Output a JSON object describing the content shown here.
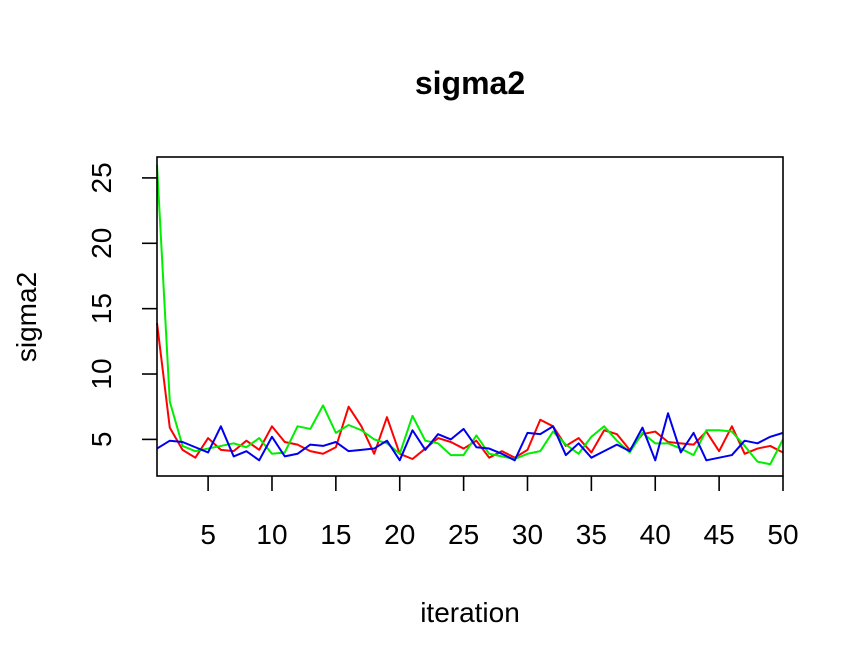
{
  "chart_data": {
    "type": "line",
    "title": "sigma2",
    "xlabel": "iteration",
    "ylabel": "sigma2",
    "xlim": [
      1,
      50
    ],
    "ylim": [
      2.2,
      26.6
    ],
    "xticks": [
      5,
      10,
      15,
      20,
      25,
      30,
      35,
      40,
      45,
      50
    ],
    "yticks": [
      5,
      10,
      15,
      20,
      25
    ],
    "x": [
      1,
      2,
      3,
      4,
      5,
      6,
      7,
      8,
      9,
      10,
      11,
      12,
      13,
      14,
      15,
      16,
      17,
      18,
      19,
      20,
      21,
      22,
      23,
      24,
      25,
      26,
      27,
      28,
      29,
      30,
      31,
      32,
      33,
      34,
      35,
      36,
      37,
      38,
      39,
      40,
      41,
      42,
      43,
      44,
      45,
      46,
      47,
      48,
      49,
      50
    ],
    "series": [
      {
        "color": "#ff0000",
        "values": [
          13.9,
          5.9,
          4.2,
          3.6,
          5.1,
          4.2,
          4.1,
          4.9,
          4.2,
          6.0,
          4.8,
          4.6,
          4.1,
          3.9,
          4.4,
          7.5,
          6.0,
          3.9,
          6.7,
          3.9,
          3.5,
          4.3,
          5.1,
          4.8,
          4.3,
          4.9,
          3.6,
          4.1,
          3.6,
          4.2,
          6.5,
          6.0,
          4.5,
          5.1,
          4.0,
          5.7,
          5.4,
          4.2,
          5.4,
          5.6,
          4.8,
          4.7,
          4.6,
          5.6,
          4.1,
          6.0,
          3.9,
          4.3,
          4.5,
          4.0
        ]
      },
      {
        "color": "#00ee00",
        "values": [
          26.0,
          7.9,
          4.5,
          4.1,
          4.3,
          4.5,
          4.7,
          4.4,
          5.1,
          3.9,
          4.0,
          6.0,
          5.8,
          7.6,
          5.5,
          6.1,
          5.7,
          5.0,
          4.7,
          3.9,
          6.8,
          4.9,
          4.7,
          3.8,
          3.8,
          5.3,
          3.9,
          3.7,
          3.5,
          3.9,
          4.1,
          5.6,
          4.6,
          3.9,
          5.2,
          6.0,
          4.9,
          4.0,
          5.5,
          4.7,
          4.7,
          4.3,
          3.8,
          5.7,
          5.7,
          5.6,
          4.5,
          3.3,
          3.1,
          5.0
        ]
      },
      {
        "color": "#0000ee",
        "values": [
          4.3,
          4.9,
          4.8,
          4.4,
          4.0,
          6.0,
          3.7,
          4.1,
          3.4,
          5.2,
          3.7,
          3.9,
          4.6,
          4.5,
          4.8,
          4.1,
          4.2,
          4.3,
          4.9,
          3.4,
          5.7,
          4.2,
          5.4,
          5.0,
          5.8,
          4.4,
          4.3,
          3.9,
          3.4,
          5.5,
          5.4,
          6.0,
          3.8,
          4.7,
          3.6,
          4.1,
          4.6,
          4.1,
          5.9,
          3.4,
          7.0,
          4.0,
          5.5,
          3.4,
          3.6,
          3.8,
          4.9,
          4.7,
          5.2,
          5.5
        ]
      }
    ]
  }
}
